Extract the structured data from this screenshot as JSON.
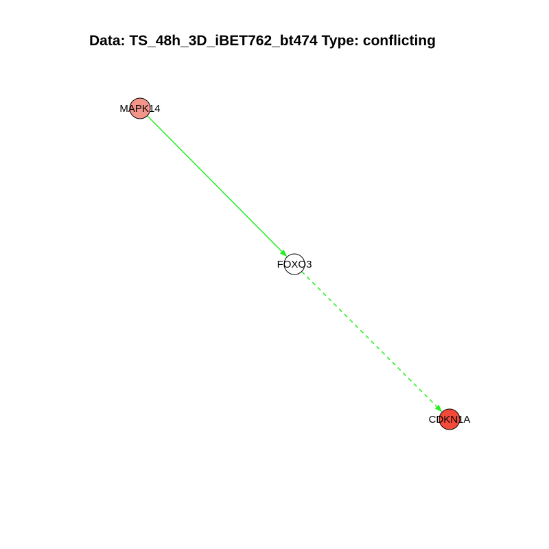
{
  "title": "Data: TS_48h_3D_iBET762_bt474 Type: conflicting",
  "graph": {
    "nodes": [
      {
        "id": "MAPK14",
        "label": "MAPK14",
        "fill": "#f4958a"
      },
      {
        "id": "FOXO3",
        "label": "FOXO3",
        "fill": "#ffffff"
      },
      {
        "id": "CDKN1A",
        "label": "CDKN1A",
        "fill": "#f44a3a"
      }
    ],
    "edges": [
      {
        "from": "MAPK14",
        "to": "FOXO3",
        "style": "solid",
        "color": "#22ee22"
      },
      {
        "from": "FOXO3",
        "to": "CDKN1A",
        "style": "dashed",
        "color": "#22ee22"
      }
    ]
  }
}
